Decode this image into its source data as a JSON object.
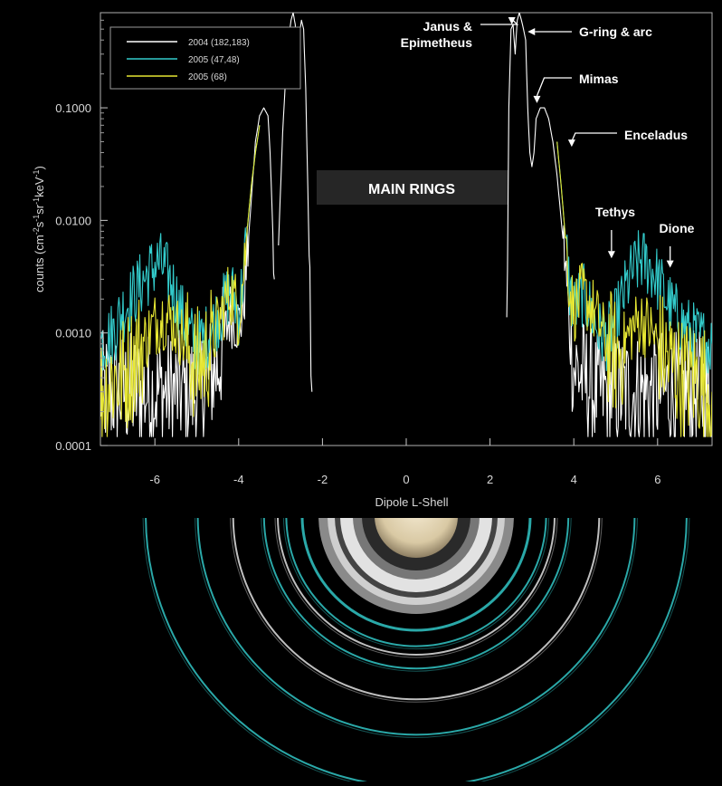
{
  "chart_data": {
    "type": "line",
    "title": "",
    "xlabel": "Dipole L-Shell",
    "ylabel_parts": {
      "prefix": "counts (cm",
      "e1": "-2",
      "s": "s",
      "e2": "-1",
      "sr": "sr",
      "e3": "-1",
      "kev": "keV",
      "e4": "-1",
      "suffix": ")"
    },
    "xlim": [
      -7.3,
      7.3
    ],
    "ylim": [
      0.0001,
      0.7
    ],
    "yscale": "log",
    "grid": false,
    "legend_position": "top-left",
    "x_ticks": [
      -6,
      -4,
      -2,
      0,
      2,
      4,
      6
    ],
    "x_tick_labels": [
      "-6",
      "-4",
      "-2",
      "0",
      "2",
      "4",
      "6"
    ],
    "y_ticks": [
      0.0001,
      0.001,
      0.01,
      0.1
    ],
    "y_tick_labels": [
      "0.0001",
      "0.0010",
      "0.0100",
      "0.1000"
    ],
    "band_label": "MAIN RINGS",
    "series": [
      {
        "name": "2004 (182,183)",
        "color": "#ffffff",
        "segments": [
          {
            "x": [
              -7.3,
              -6.5,
              -6.0,
              -5.5,
              -5.0,
              -4.5,
              -4.2,
              -4.0,
              -3.9,
              -3.8,
              -3.7,
              -3.6,
              -3.5,
              -3.4,
              -3.3,
              -3.25,
              -3.2,
              -3.15
            ],
            "y": [
              0.0003,
              0.0003,
              0.0003,
              0.0003,
              0.0003,
              0.0005,
              0.0015,
              0.0012,
              0.0015,
              0.0045,
              0.015,
              0.05,
              0.085,
              0.1,
              0.085,
              0.04,
              0.012,
              0.003
            ]
          },
          {
            "x": [
              -3.05,
              -2.95,
              -2.85,
              -2.75,
              -2.7,
              -2.65,
              -2.6,
              -2.55,
              -2.5,
              -2.45,
              -2.4,
              -2.35,
              -2.3,
              -2.25
            ],
            "y": [
              0.006,
              0.06,
              0.3,
              0.6,
              0.7,
              0.55,
              0.3,
              0.45,
              0.6,
              0.5,
              0.15,
              0.02,
              0.002,
              0.0003
            ]
          },
          {
            "x": [
              2.4,
              2.45,
              2.5,
              2.55,
              2.6,
              2.65,
              2.7,
              2.75,
              2.8,
              2.85,
              2.9,
              2.95,
              3.0,
              3.05,
              3.1,
              3.2,
              3.3,
              3.4,
              3.5,
              3.6,
              3.7,
              3.8,
              3.85,
              3.9,
              4.0,
              4.5,
              5.0,
              5.5,
              6.0,
              6.5,
              7.3
            ],
            "y": [
              0.001,
              0.1,
              0.5,
              0.55,
              0.3,
              0.6,
              0.7,
              0.6,
              0.5,
              0.4,
              0.1,
              0.04,
              0.03,
              0.04,
              0.08,
              0.1,
              0.1,
              0.08,
              0.05,
              0.025,
              0.01,
              0.004,
              0.002,
              0.001,
              0.0005,
              0.0003,
              0.0003,
              0.0003,
              0.0003,
              0.0003,
              0.0003
            ]
          }
        ]
      },
      {
        "name": "2005 (47,48)",
        "color": "#33cccc",
        "segments": [
          {
            "x": [
              -7.3,
              -7.0,
              -6.8,
              -6.5,
              -6.2,
              -6.0,
              -5.9,
              -5.8,
              -5.6,
              -5.4,
              -5.2,
              -5.0,
              -4.8,
              -4.6,
              -4.4,
              -4.3,
              -4.2,
              -4.1,
              -4.0,
              -3.9,
              -3.8,
              -3.7,
              -3.6,
              -3.5
            ],
            "y": [
              0.0008,
              0.001,
              0.0015,
              0.0022,
              0.0032,
              0.004,
              0.0042,
              0.0038,
              0.0028,
              0.0016,
              0.001,
              0.0008,
              0.0009,
              0.0012,
              0.0016,
              0.002,
              0.0024,
              0.002,
              0.0015,
              0.003,
              0.008,
              0.02,
              0.04,
              0.07
            ]
          },
          {
            "x": [
              3.6,
              3.7,
              3.8,
              3.9,
              4.0,
              4.2,
              4.4,
              4.6,
              4.8,
              5.0,
              5.2,
              5.4,
              5.6,
              5.8,
              6.0,
              6.2,
              6.4,
              6.6,
              6.8,
              7.0,
              7.3
            ],
            "y": [
              0.05,
              0.02,
              0.007,
              0.0025,
              0.0016,
              0.0022,
              0.0016,
              0.001,
              0.0009,
              0.0013,
              0.0022,
              0.0035,
              0.0045,
              0.004,
              0.003,
              0.002,
              0.0015,
              0.0012,
              0.001,
              0.0009,
              0.0008
            ]
          }
        ]
      },
      {
        "name": "2005 (68)",
        "color": "#e6e633",
        "segments": [
          {
            "x": [
              -7.3,
              -7.0,
              -6.8,
              -6.6,
              -6.4,
              -6.2,
              -6.0,
              -5.8,
              -5.6,
              -5.4,
              -5.2,
              -5.0,
              -4.8,
              -4.6,
              -4.4,
              -4.3,
              -4.2,
              -4.1,
              -4.0,
              -3.9,
              -3.8,
              -3.7,
              -3.6,
              -3.5
            ],
            "y": [
              0.0003,
              0.0004,
              0.0004,
              0.0005,
              0.0007,
              0.0009,
              0.0012,
              0.0014,
              0.0013,
              0.001,
              0.0007,
              0.0005,
              0.0006,
              0.0009,
              0.0015,
              0.002,
              0.0023,
              0.002,
              0.0014,
              0.003,
              0.008,
              0.02,
              0.04,
              0.07
            ]
          },
          {
            "x": [
              3.6,
              3.7,
              3.8,
              3.9,
              4.0,
              4.2,
              4.4,
              4.6,
              4.8,
              5.0,
              5.2,
              5.4,
              5.6,
              5.8,
              6.0,
              6.2,
              6.4,
              6.6,
              7.0,
              7.3
            ],
            "y": [
              0.05,
              0.02,
              0.007,
              0.0025,
              0.0016,
              0.0022,
              0.0018,
              0.0012,
              0.0008,
              0.0006,
              0.0008,
              0.0011,
              0.0013,
              0.0011,
              0.0008,
              0.0006,
              0.0005,
              0.0004,
              0.0004,
              0.0003
            ]
          }
        ]
      }
    ],
    "annotations": [
      {
        "id": "janus",
        "lines": [
          "Janus &",
          "Epimetheus"
        ],
        "target_x": 2.52,
        "target_y": 0.55,
        "arrow": "left-then-down"
      },
      {
        "id": "gring",
        "lines": [
          "G-ring & arc"
        ],
        "target_x": 2.9,
        "target_y": 0.5,
        "arrow": "left"
      },
      {
        "id": "mimas",
        "lines": [
          "Mimas"
        ],
        "target_x": 3.12,
        "target_y": 0.11,
        "arrow": "left-then-down"
      },
      {
        "id": "enceladus",
        "lines": [
          "Enceladus"
        ],
        "target_x": 3.95,
        "target_y": 0.045,
        "arrow": "left-then-down"
      },
      {
        "id": "tethys",
        "lines": [
          "Tethys"
        ],
        "target_x": 4.9,
        "target_y": 0.0046,
        "arrow": "down"
      },
      {
        "id": "dione",
        "lines": [
          "Dione"
        ],
        "target_x": 6.3,
        "target_y": 0.0038,
        "arrow": "down"
      }
    ]
  },
  "ring_diagram": {
    "orbit_rings": [
      "Janus & Epimetheus",
      "G-ring & arc",
      "Mimas",
      "Enceladus",
      "Tethys",
      "Dione"
    ]
  }
}
